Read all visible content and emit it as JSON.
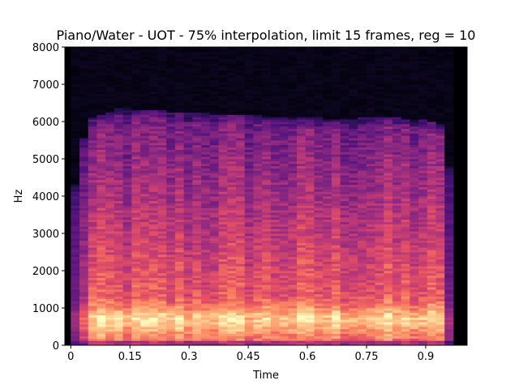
{
  "chart_data": {
    "type": "heatmap",
    "title": "Piano/Water - UOT - 75% interpolation, limit 15 frames, reg = 10",
    "xlabel": "Time",
    "ylabel": "Hz",
    "xlim": [
      -0.015,
      1.005
    ],
    "ylim": [
      0,
      8000
    ],
    "x_ticks": [
      0,
      0.15,
      0.3,
      0.45,
      0.6,
      0.75,
      0.9
    ],
    "x_tick_labels": [
      "0",
      "0.15",
      "0.3",
      "0.45",
      "0.6",
      "0.75",
      "0.9"
    ],
    "y_ticks": [
      0,
      1000,
      2000,
      3000,
      4000,
      5000,
      6000,
      7000,
      8000
    ],
    "y_tick_labels": [
      "0",
      "1000",
      "2000",
      "3000",
      "4000",
      "5000",
      "6000",
      "7000",
      "8000"
    ],
    "colormap": "magma",
    "grid": false,
    "signal_start_time": 0.0,
    "signal_end_time": 0.97,
    "upper_frequency_edge_hz": [
      [
        0.0,
        3200
      ],
      [
        0.02,
        5200
      ],
      [
        0.05,
        6100
      ],
      [
        0.1,
        6250
      ],
      [
        0.12,
        6380
      ],
      [
        0.2,
        6300
      ],
      [
        0.3,
        6250
      ],
      [
        0.4,
        6200
      ],
      [
        0.5,
        6150
      ],
      [
        0.6,
        6100
      ],
      [
        0.7,
        6080
      ],
      [
        0.8,
        6120
      ],
      [
        0.9,
        6050
      ],
      [
        0.94,
        5900
      ],
      [
        0.97,
        4200
      ]
    ],
    "bright_band": {
      "low_hz": 200,
      "high_hz": 1400,
      "peak_hz": 700
    }
  }
}
